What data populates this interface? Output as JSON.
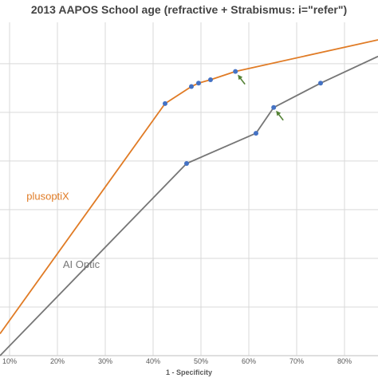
{
  "chart_data": {
    "type": "line",
    "title": "2013 AAPOS School age (refractive + Strabismus: i=\"refer\")",
    "xlabel": "1 - Specificity",
    "ylabel": "",
    "xlim": [
      0.08,
      0.87
    ],
    "ylim": [
      0.3,
      0.985
    ],
    "grid": {
      "vertical": true,
      "horizontal": true
    },
    "x_ticks": [
      {
        "value": 0.1,
        "label": "10%"
      },
      {
        "value": 0.2,
        "label": "20%"
      },
      {
        "value": 0.3,
        "label": "30%"
      },
      {
        "value": 0.4,
        "label": "40%"
      },
      {
        "value": 0.5,
        "label": "50%"
      },
      {
        "value": 0.6,
        "label": "60%"
      },
      {
        "value": 0.7,
        "label": "70%"
      },
      {
        "value": 0.8,
        "label": "80%"
      }
    ],
    "y_gridlines": [
      0.4,
      0.5,
      0.6,
      0.7,
      0.8,
      0.9
    ],
    "series": [
      {
        "name": "plusoptiX",
        "color": "#E07B25",
        "line": [
          [
            0.08,
            0.345
          ],
          [
            0.425,
            0.818
          ],
          [
            0.48,
            0.853
          ],
          [
            0.495,
            0.86
          ],
          [
            0.52,
            0.867
          ],
          [
            0.572,
            0.884
          ],
          [
            0.87,
            0.949
          ]
        ],
        "markers": [
          [
            0.425,
            0.818
          ],
          [
            0.48,
            0.853
          ],
          [
            0.495,
            0.86
          ],
          [
            0.52,
            0.867
          ],
          [
            0.572,
            0.884
          ]
        ]
      },
      {
        "name": "AI Optic",
        "color": "#767676",
        "line": [
          [
            0.08,
            0.3
          ],
          [
            0.47,
            0.695
          ],
          [
            0.615,
            0.757
          ],
          [
            0.652,
            0.81
          ],
          [
            0.75,
            0.86
          ],
          [
            0.87,
            0.915
          ]
        ],
        "markers": [
          [
            0.47,
            0.695
          ],
          [
            0.615,
            0.757
          ],
          [
            0.652,
            0.81
          ],
          [
            0.75,
            0.86
          ]
        ]
      }
    ],
    "marker_color": "#4472C4",
    "labels": [
      {
        "text": "plusoptiX",
        "series": "plusoptiX",
        "at": [
          0.18,
          0.62
        ]
      },
      {
        "text": "AI Optic",
        "series": "AI Optic",
        "at": [
          0.25,
          0.48
        ]
      }
    ],
    "annotations": [
      {
        "type": "arrow",
        "color": "#548235",
        "points_to": [
          0.572,
          0.884
        ]
      },
      {
        "type": "arrow",
        "color": "#548235",
        "points_to": [
          0.652,
          0.81
        ]
      }
    ]
  }
}
